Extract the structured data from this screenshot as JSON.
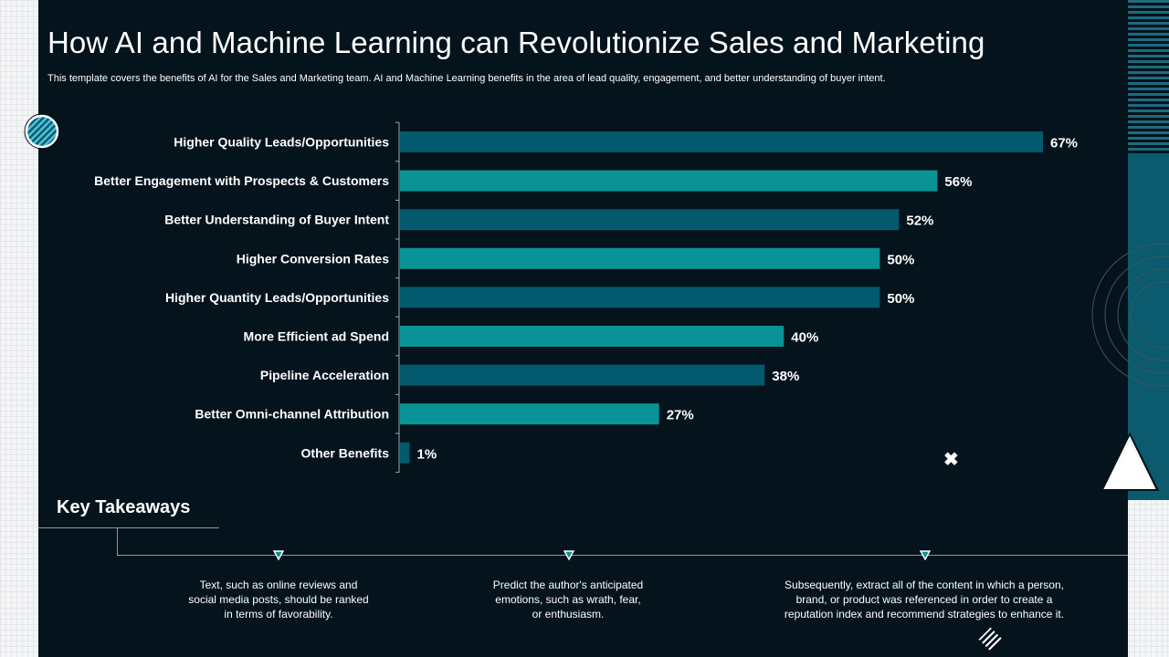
{
  "title": "How AI and Machine Learning can Revolutionize Sales and Marketing",
  "subtitle": "This template covers the benefits of AI for the Sales and Marketing team. AI and Machine Learning benefits in the area of lead quality, engagement, and  better understanding of buyer intent.",
  "colors": {
    "bar_dark": "#03596d",
    "bar_light": "#0a9396",
    "background": "#04131c"
  },
  "chart_data": {
    "type": "bar",
    "orientation": "horizontal",
    "title": "",
    "xlabel": "",
    "ylabel": "",
    "xlim": [
      0,
      100
    ],
    "value_suffix": "%",
    "categories": [
      "Higher Quality Leads/Opportunities",
      "Better Engagement with Prospects & Customers",
      "Better Understanding of Buyer Intent",
      "Higher Conversion Rates",
      "Higher Quantity Leads/Opportunities",
      "More Efficient ad Spend",
      "Pipeline Acceleration",
      "Better Omni-channel Attribution",
      "Other Benefits"
    ],
    "values": [
      67,
      56,
      52,
      50,
      50,
      40,
      38,
      27,
      1
    ],
    "value_labels": [
      "67%",
      "56%",
      "52%",
      "50%",
      "50%",
      "40%",
      "38%",
      "27%",
      "1%"
    ]
  },
  "takeaways": {
    "heading": "Key Takeaways",
    "items": [
      {
        "line1": "Text, such as online reviews  and",
        "line2": "social media posts, should be ranked",
        "line3": "in terms of favorability."
      },
      {
        "line1": "Predict the author's anticipated",
        "line2": "emotions, such as wrath, fear,",
        "line3": "or enthusiasm."
      },
      {
        "line1": "Subsequently, extract all of the content in which a person,",
        "line2": "brand, or product was referenced  in order to create a",
        "line3": "reputation index and recommend  strategies to enhance it."
      }
    ]
  },
  "icons": {
    "close": "close-icon",
    "triangle": "triangle-icon",
    "circle": "striped-circle-icon",
    "diagonal": "diagonal-lines-icon"
  }
}
